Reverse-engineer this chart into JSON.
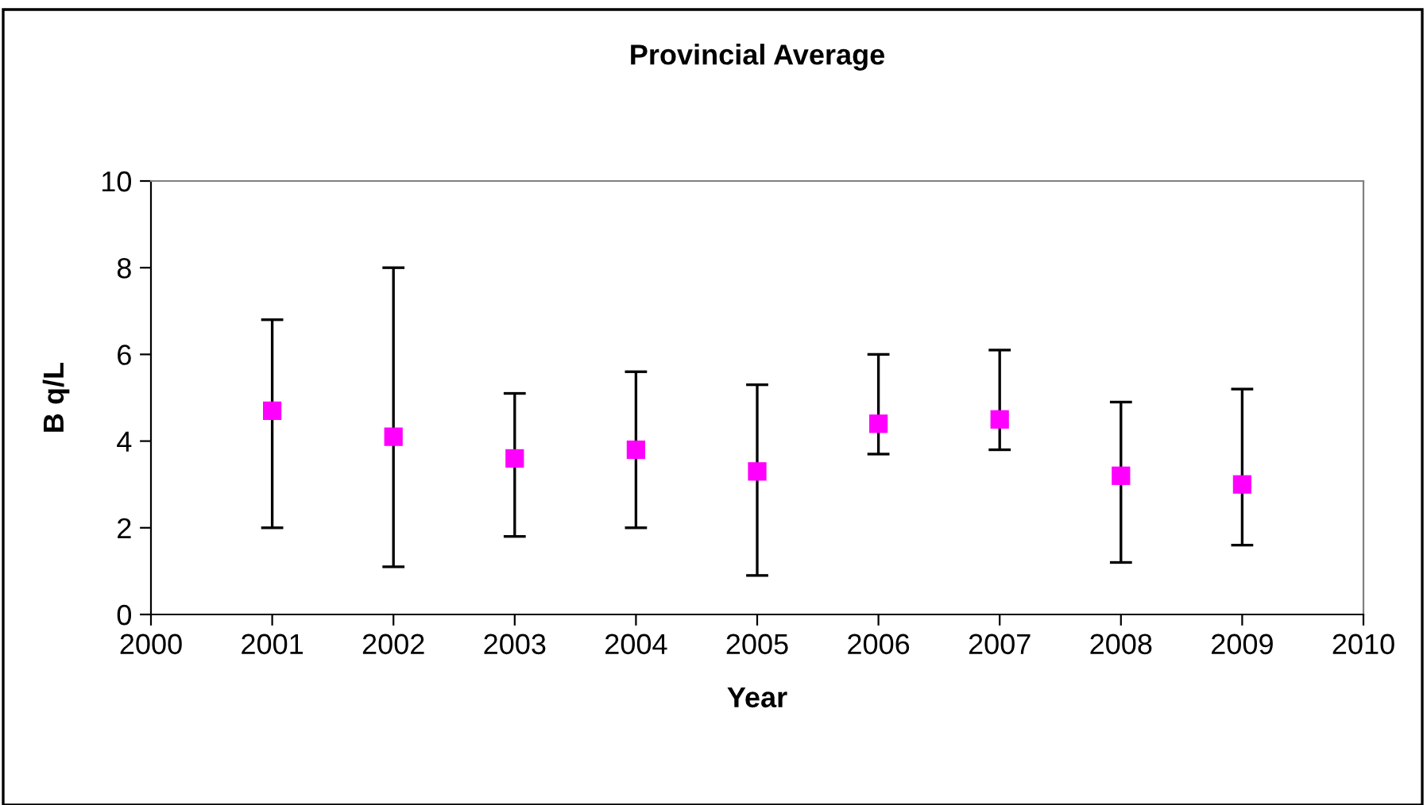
{
  "chart_data": {
    "type": "scatter",
    "title": "Provincial Average",
    "xlabel": "Year",
    "ylabel": "B q/L",
    "x": [
      2001,
      2002,
      2003,
      2004,
      2005,
      2006,
      2007,
      2008,
      2009
    ],
    "values": [
      4.7,
      4.1,
      3.6,
      3.8,
      3.3,
      4.4,
      4.5,
      3.2,
      3.0
    ],
    "errors": [
      [
        2.0,
        6.8
      ],
      [
        1.1,
        8.0
      ],
      [
        1.8,
        5.1
      ],
      [
        2.0,
        5.6
      ],
      [
        0.9,
        5.3
      ],
      [
        3.7,
        6.0
      ],
      [
        3.8,
        6.1
      ],
      [
        1.2,
        4.9
      ],
      [
        1.6,
        5.2
      ]
    ],
    "color": "#ff00ff",
    "marker": "square",
    "grid": false,
    "legend": false,
    "xlim": [
      2000,
      2010
    ],
    "xticks": [
      2000,
      2001,
      2002,
      2003,
      2004,
      2005,
      2006,
      2007,
      2008,
      2009,
      2010
    ],
    "ylim": [
      0,
      10
    ],
    "yticks": [
      0,
      2,
      4,
      6,
      8,
      10
    ]
  }
}
